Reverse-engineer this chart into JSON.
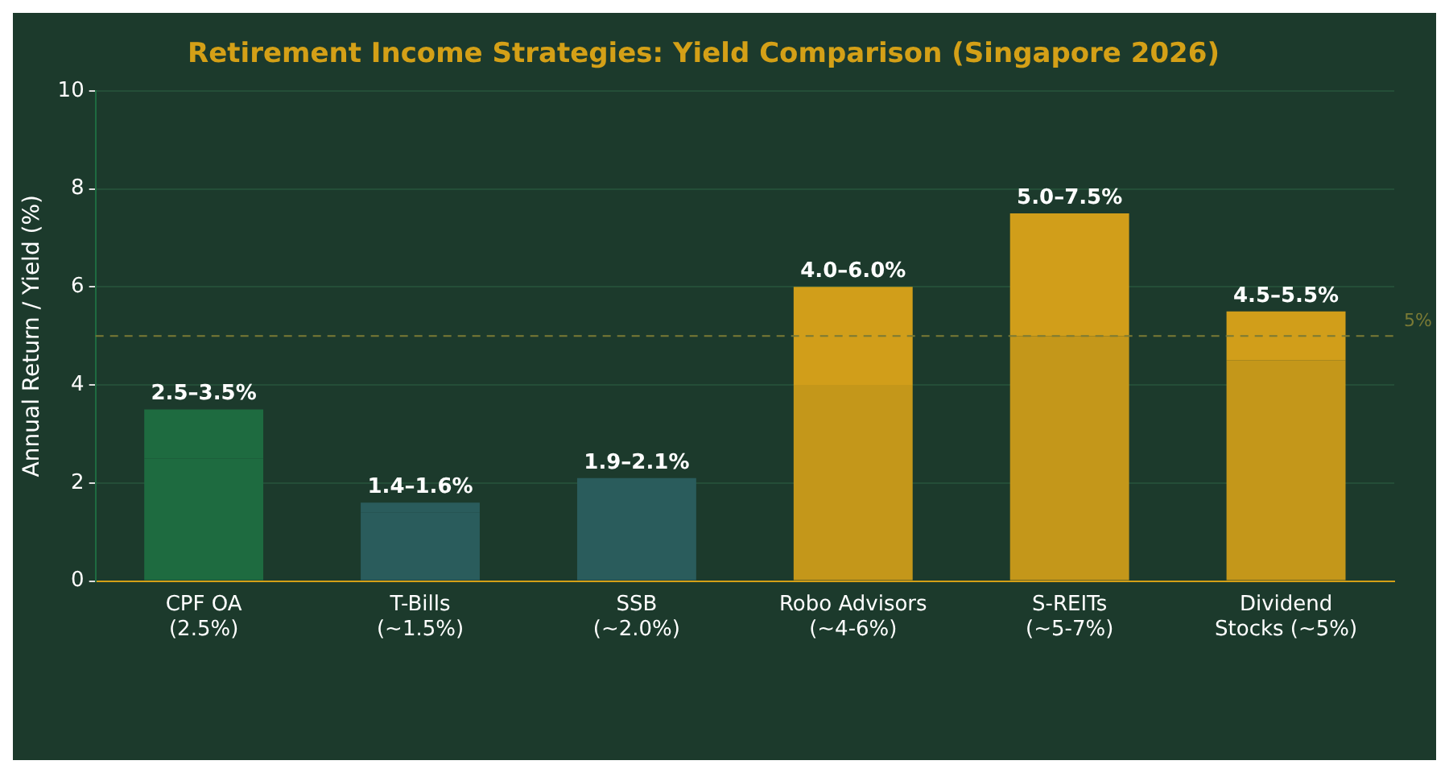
{
  "chart_data": {
    "type": "bar",
    "title": "Retirement Income Strategies: Yield Comparison (Singapore 2026)",
    "ylabel": "Annual Return / Yield (%)",
    "categories": [
      "CPF OA\n(2.5%)",
      "T-Bills\n(~1.5%)",
      "SSB\n(~2.0%)",
      "Robo Advisors\n(~4-6%)",
      "S-REITs\n(~5-7%)",
      "Dividend\nStocks (~5%)"
    ],
    "stacked": true,
    "series": [
      {
        "colors": [
          "#1e6b40",
          "#2a5c5c",
          "#2a5c5c",
          "#c4971a",
          "#c4971a",
          "#c4971a"
        ],
        "values": [
          2.5,
          1.4,
          1.9,
          4.0,
          5.0,
          4.5
        ]
      },
      {
        "colors": [
          "#1e6b40",
          "#2a5c5c",
          "#2a5c5c",
          "#d19e1a",
          "#d19e1a",
          "#d19e1a"
        ],
        "values": [
          1.0,
          0.2,
          0.2,
          2.0,
          2.5,
          1.0
        ]
      }
    ],
    "totals": [
      "2.5–3.5%",
      "1.4–1.6%",
      "1.9–2.1%",
      "4.0–6.0%",
      "5.0–7.5%",
      "4.5–5.5%"
    ],
    "ylim": [
      0,
      10
    ],
    "yticks": [
      0,
      2,
      4,
      6,
      8,
      10
    ],
    "grid": "y",
    "legend": false,
    "ref_lines": [
      {
        "axis": "y",
        "value": 5,
        "label": "5%",
        "color": "#7a7a35",
        "line_style": "dashed"
      }
    ]
  }
}
